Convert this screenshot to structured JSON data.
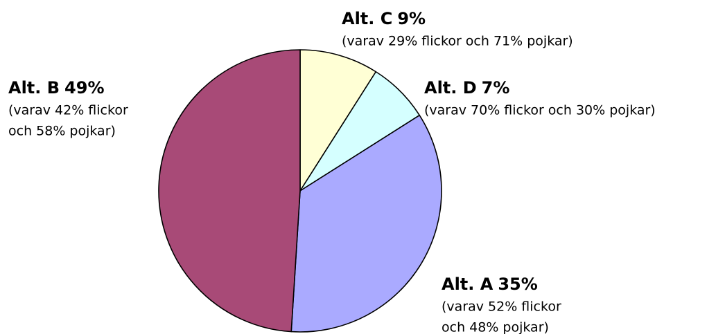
{
  "chart_data": {
    "type": "pie",
    "categories": [
      "Alt. C",
      "Alt. D",
      "Alt. A",
      "Alt. B"
    ],
    "values": [
      9,
      7,
      35,
      49
    ],
    "value_labels": [
      "9%",
      "7%",
      "35%",
      "49%"
    ],
    "colors": [
      "#ffffd5",
      "#d5ffff",
      "#aaaaff",
      "#a84a77"
    ],
    "descriptions": [
      [
        "(varav 29% flickor och 71% pojkar)"
      ],
      [
        "(varav 70% flickor och 30% pojkar)"
      ],
      [
        "(varav 52% flickor",
        "och 48% pojkar)"
      ],
      [
        "(varav 42% flickor",
        "och 58% pojkar)"
      ]
    ]
  }
}
